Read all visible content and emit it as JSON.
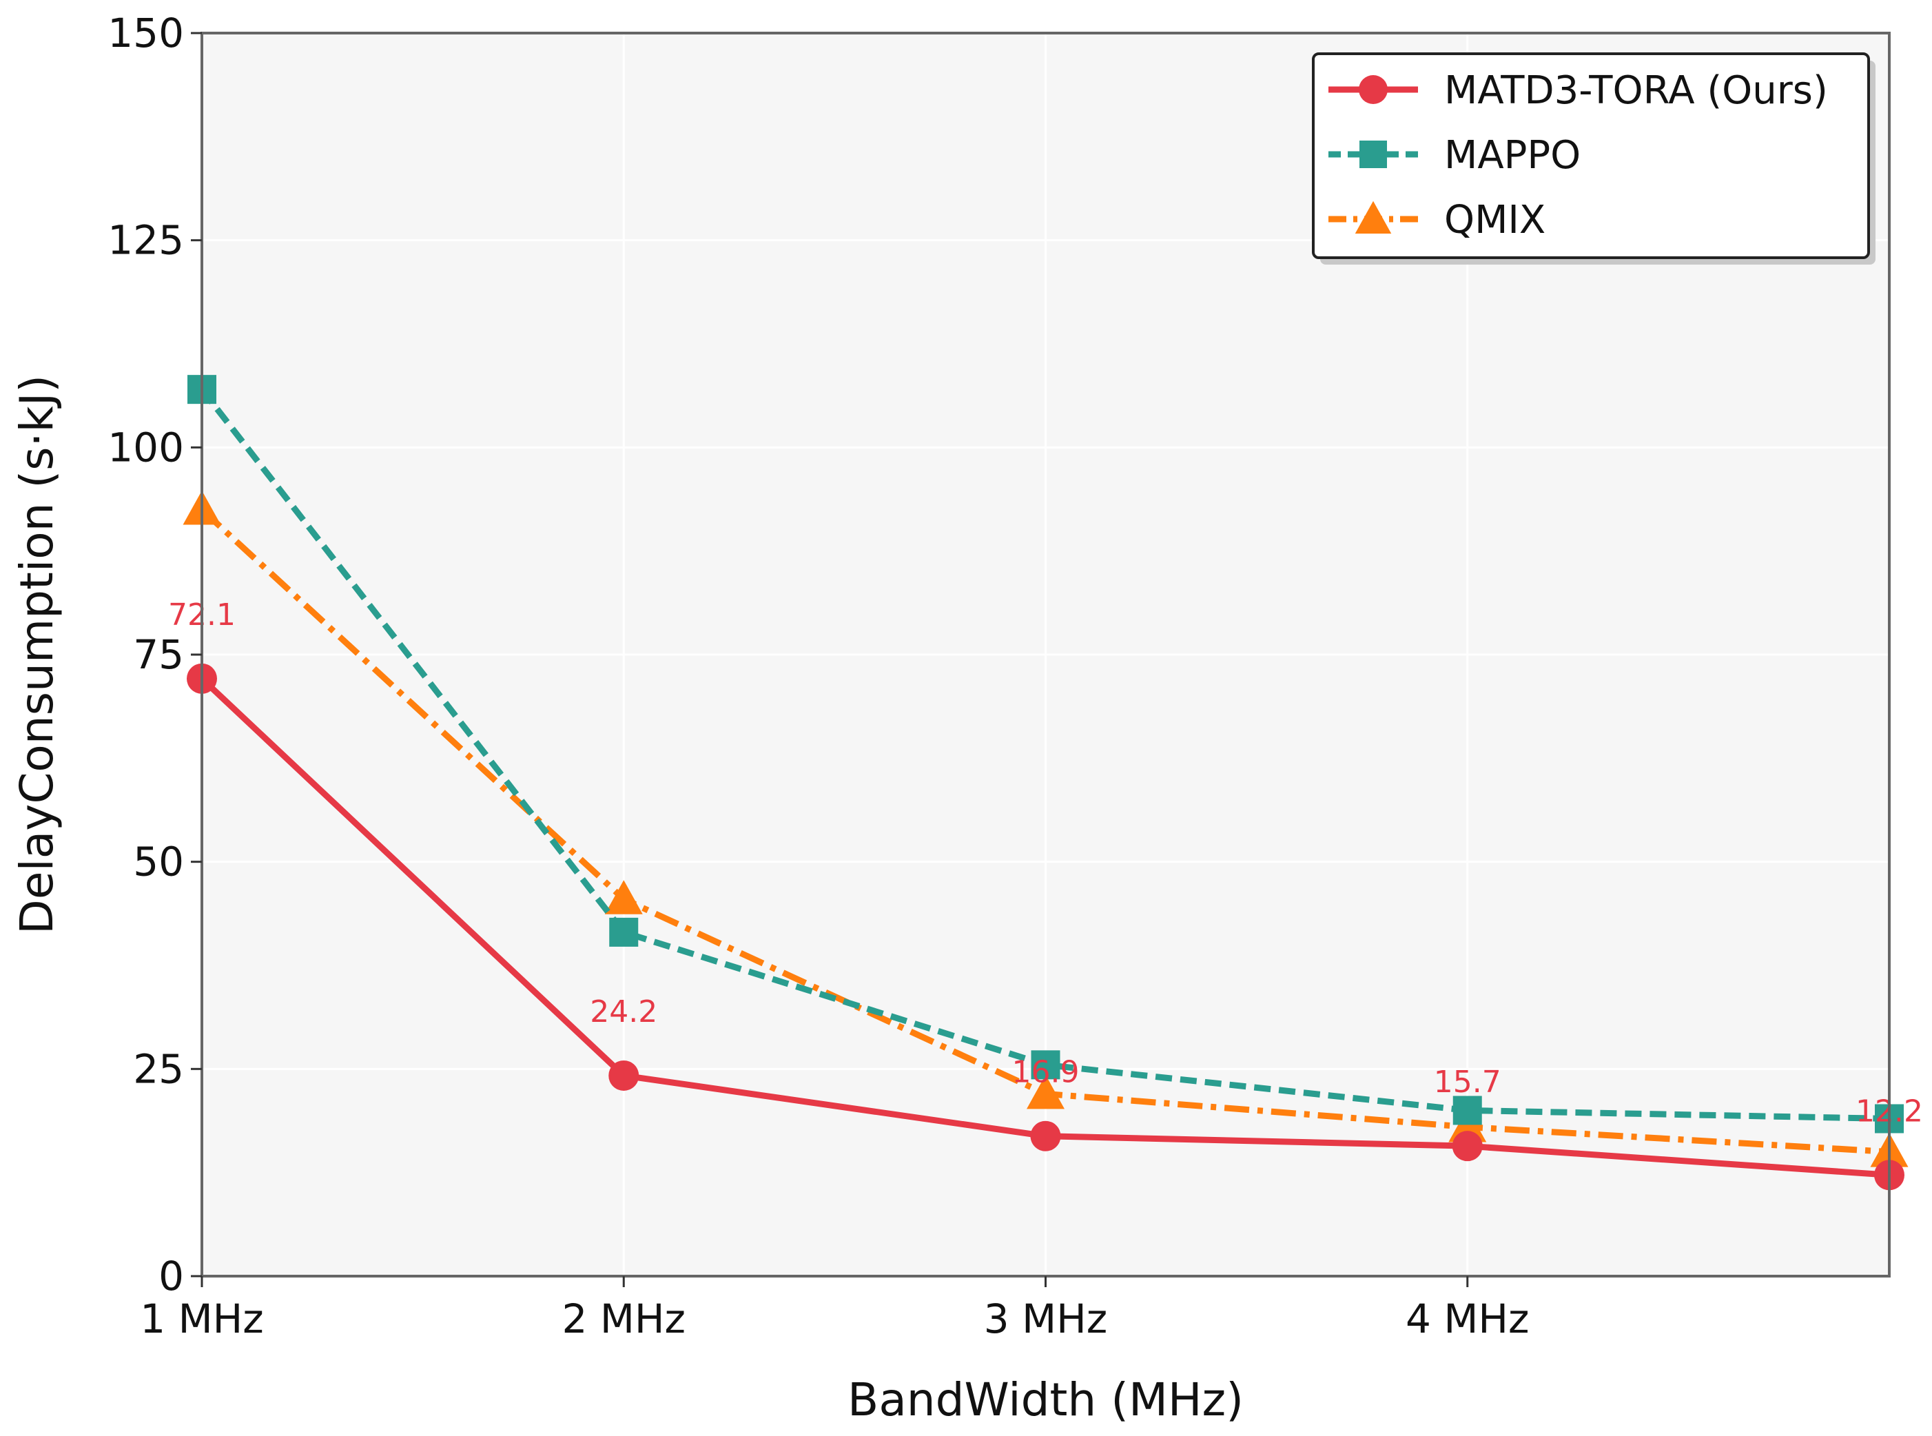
{
  "chart_data": {
    "type": "line",
    "title": "",
    "xlabel": "BandWidth (MHz)",
    "ylabel": "DelayConsumption (s·kJ)",
    "x": [
      1,
      2,
      3,
      4,
      5
    ],
    "x_tick_values": [
      1,
      2,
      3,
      4
    ],
    "x_tick_labels": [
      "1 MHz",
      "2 MHz",
      "3 MHz",
      "4 MHz"
    ],
    "xlim": [
      1,
      5
    ],
    "ylim": [
      0,
      150
    ],
    "y_ticks": [
      0,
      25,
      50,
      75,
      100,
      125,
      150
    ],
    "y_tick_labels": [
      "0",
      "25",
      "50",
      "75",
      "100",
      "125",
      "150"
    ],
    "grid": true,
    "legend_position": "top-right",
    "series": [
      {
        "name": "MATD3-TORA (Ours)",
        "values": [
          72.1,
          24.2,
          16.9,
          15.7,
          12.2
        ],
        "color": "#e63946",
        "marker": "circle",
        "dash": "solid"
      },
      {
        "name": "MAPPO",
        "values": [
          107,
          41.5,
          25.5,
          20,
          19
        ],
        "color": "#2a9d8f",
        "marker": "square",
        "dash": "dashed"
      },
      {
        "name": "QMIX",
        "values": [
          92.5,
          45.5,
          22,
          18,
          15
        ],
        "color": "#ff7f0e",
        "marker": "triangle",
        "dash": "dashdot"
      }
    ],
    "annotations": [
      {
        "x": 1,
        "y": 72.1,
        "text": "72.1"
      },
      {
        "x": 2,
        "y": 24.2,
        "text": "24.2"
      },
      {
        "x": 3,
        "y": 16.9,
        "text": "16.9"
      },
      {
        "x": 4,
        "y": 15.7,
        "text": "15.7"
      },
      {
        "x": 5,
        "y": 12.2,
        "text": "12.2"
      }
    ],
    "annotation_color": "#e63946"
  }
}
